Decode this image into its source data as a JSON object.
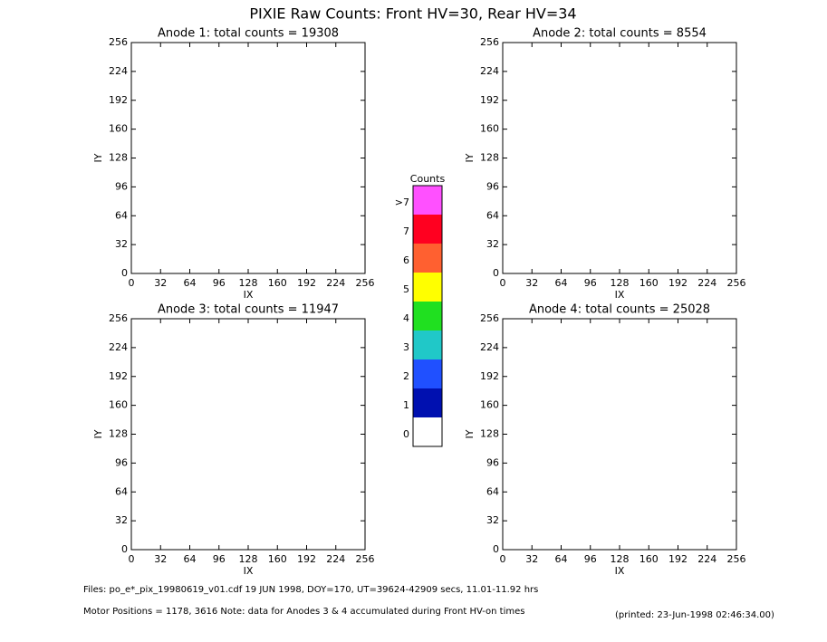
{
  "title": "PIXIE Raw Counts:  Front HV=30, Rear HV=34",
  "chart_data": [
    {
      "type": "heatmap",
      "title": "Anode 1: total counts = 19308",
      "x_label": "IX",
      "y_label": "IY",
      "xlim": [
        0,
        256
      ],
      "ylim": [
        0,
        256
      ],
      "xticks": [
        0,
        32,
        64,
        96,
        128,
        160,
        192,
        224,
        256
      ],
      "yticks": [
        0,
        32,
        64,
        96,
        128,
        160,
        192,
        224,
        256
      ]
    },
    {
      "type": "heatmap",
      "title": "Anode 2: total counts = 8554",
      "x_label": "IX",
      "y_label": "IY",
      "xlim": [
        0,
        256
      ],
      "ylim": [
        0,
        256
      ],
      "xticks": [
        0,
        32,
        64,
        96,
        128,
        160,
        192,
        224,
        256
      ],
      "yticks": [
        0,
        32,
        64,
        96,
        128,
        160,
        192,
        224,
        256
      ]
    },
    {
      "type": "heatmap",
      "title": "Anode 3: total counts = 11947",
      "x_label": "IX",
      "y_label": "IY",
      "xlim": [
        0,
        256
      ],
      "ylim": [
        0,
        256
      ],
      "xticks": [
        0,
        32,
        64,
        96,
        128,
        160,
        192,
        224,
        256
      ],
      "yticks": [
        0,
        32,
        64,
        96,
        128,
        160,
        192,
        224,
        256
      ]
    },
    {
      "type": "heatmap",
      "title": "Anode 4: total counts = 25028",
      "x_label": "IX",
      "y_label": "IY",
      "xlim": [
        0,
        256
      ],
      "ylim": [
        0,
        256
      ],
      "xticks": [
        0,
        32,
        64,
        96,
        128,
        160,
        192,
        224,
        256
      ],
      "yticks": [
        0,
        32,
        64,
        96,
        128,
        160,
        192,
        224,
        256
      ]
    }
  ],
  "colorbar": {
    "title": "Counts",
    "labels": [
      "0",
      "1",
      "2",
      "3",
      "4",
      "5",
      "6",
      "7",
      ">7"
    ],
    "colors": [
      "#ffffff",
      "#0010b0",
      "#2050ff",
      "#20c8c8",
      "#20e020",
      "#ffff00",
      "#ff6030",
      "#ff0020",
      "#ff50ff"
    ]
  },
  "footer": {
    "files": "Files: po_e*_pix_19980619_v01.cdf     19 JUN 1998, DOY=170, UT=39624-42909 secs, 11.01-11.92 hrs",
    "motor": "Motor Positions = 1178, 3616    Note: data for Anodes 3 & 4 accumulated during Front HV-on times",
    "printed": "(printed: 23-Jun-1998 02:46:34.00)"
  }
}
